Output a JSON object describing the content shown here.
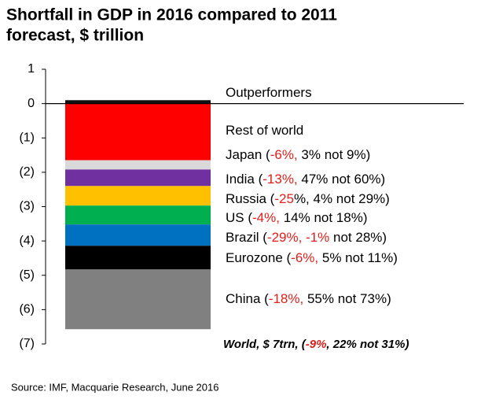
{
  "chart_data": {
    "type": "stacked_bar",
    "title": [
      "Shortfall in GDP in 2016 compared to 2011",
      "forecast, $ trillion"
    ],
    "source": "Source: IMF, Macquarie Research, June 2016",
    "ylim": [
      -7,
      1
    ],
    "yticks": [
      1,
      0,
      {
        "value": -1,
        "label": "(1)"
      },
      {
        "value": -2,
        "label": "(2)"
      },
      {
        "value": -3,
        "label": "(3)"
      },
      {
        "value": -4,
        "label": "(4)"
      },
      {
        "value": -5,
        "label": "(5)"
      },
      {
        "value": -6,
        "label": "(6)"
      },
      {
        "value": -7,
        "label": "(7)"
      }
    ],
    "highlight_color": "#e0201b",
    "series": [
      {
        "name": "Outperformers",
        "color": "#111111",
        "values": [
          0.1
        ]
      },
      {
        "name": "Rest of world",
        "color": "#ff0000",
        "values": [
          -1.65
        ]
      },
      {
        "name": "Japan (-6%, 3% not 9%)",
        "highlight": "-6%,",
        "color": "#d9d9d9",
        "values": [
          -0.27
        ]
      },
      {
        "name": "India (-13%, 47% not 60%)",
        "highlight": "-13%,",
        "color": "#7030a0",
        "values": [
          -0.48
        ]
      },
      {
        "name": "Russia (-25%, 4% not 29%)",
        "highlight": "-25",
        "color": "#ffc000",
        "values": [
          -0.57
        ]
      },
      {
        "name": "US (-4%, 14% not 18%)",
        "highlight": "-4%,",
        "color": "#00b050",
        "values": [
          -0.55
        ]
      },
      {
        "name": "Brazil (-29%, -1% not 28%)",
        "highlight": "-29%, -1%",
        "color": "#0070c0",
        "values": [
          -0.62
        ]
      },
      {
        "name": "Eurozone (-6%, 5% not 11%)",
        "highlight": "-6%,",
        "color": "#000000",
        "values": [
          -0.69
        ]
      },
      {
        "name": "China (-18%, 55% not 73%)",
        "highlight": "-18%,",
        "color": "#808080",
        "values": [
          -1.74
        ]
      }
    ],
    "footnote": {
      "text": "World, $ 7trn, (-9%, 22% not 31%)",
      "highlight": "-9%"
    }
  }
}
